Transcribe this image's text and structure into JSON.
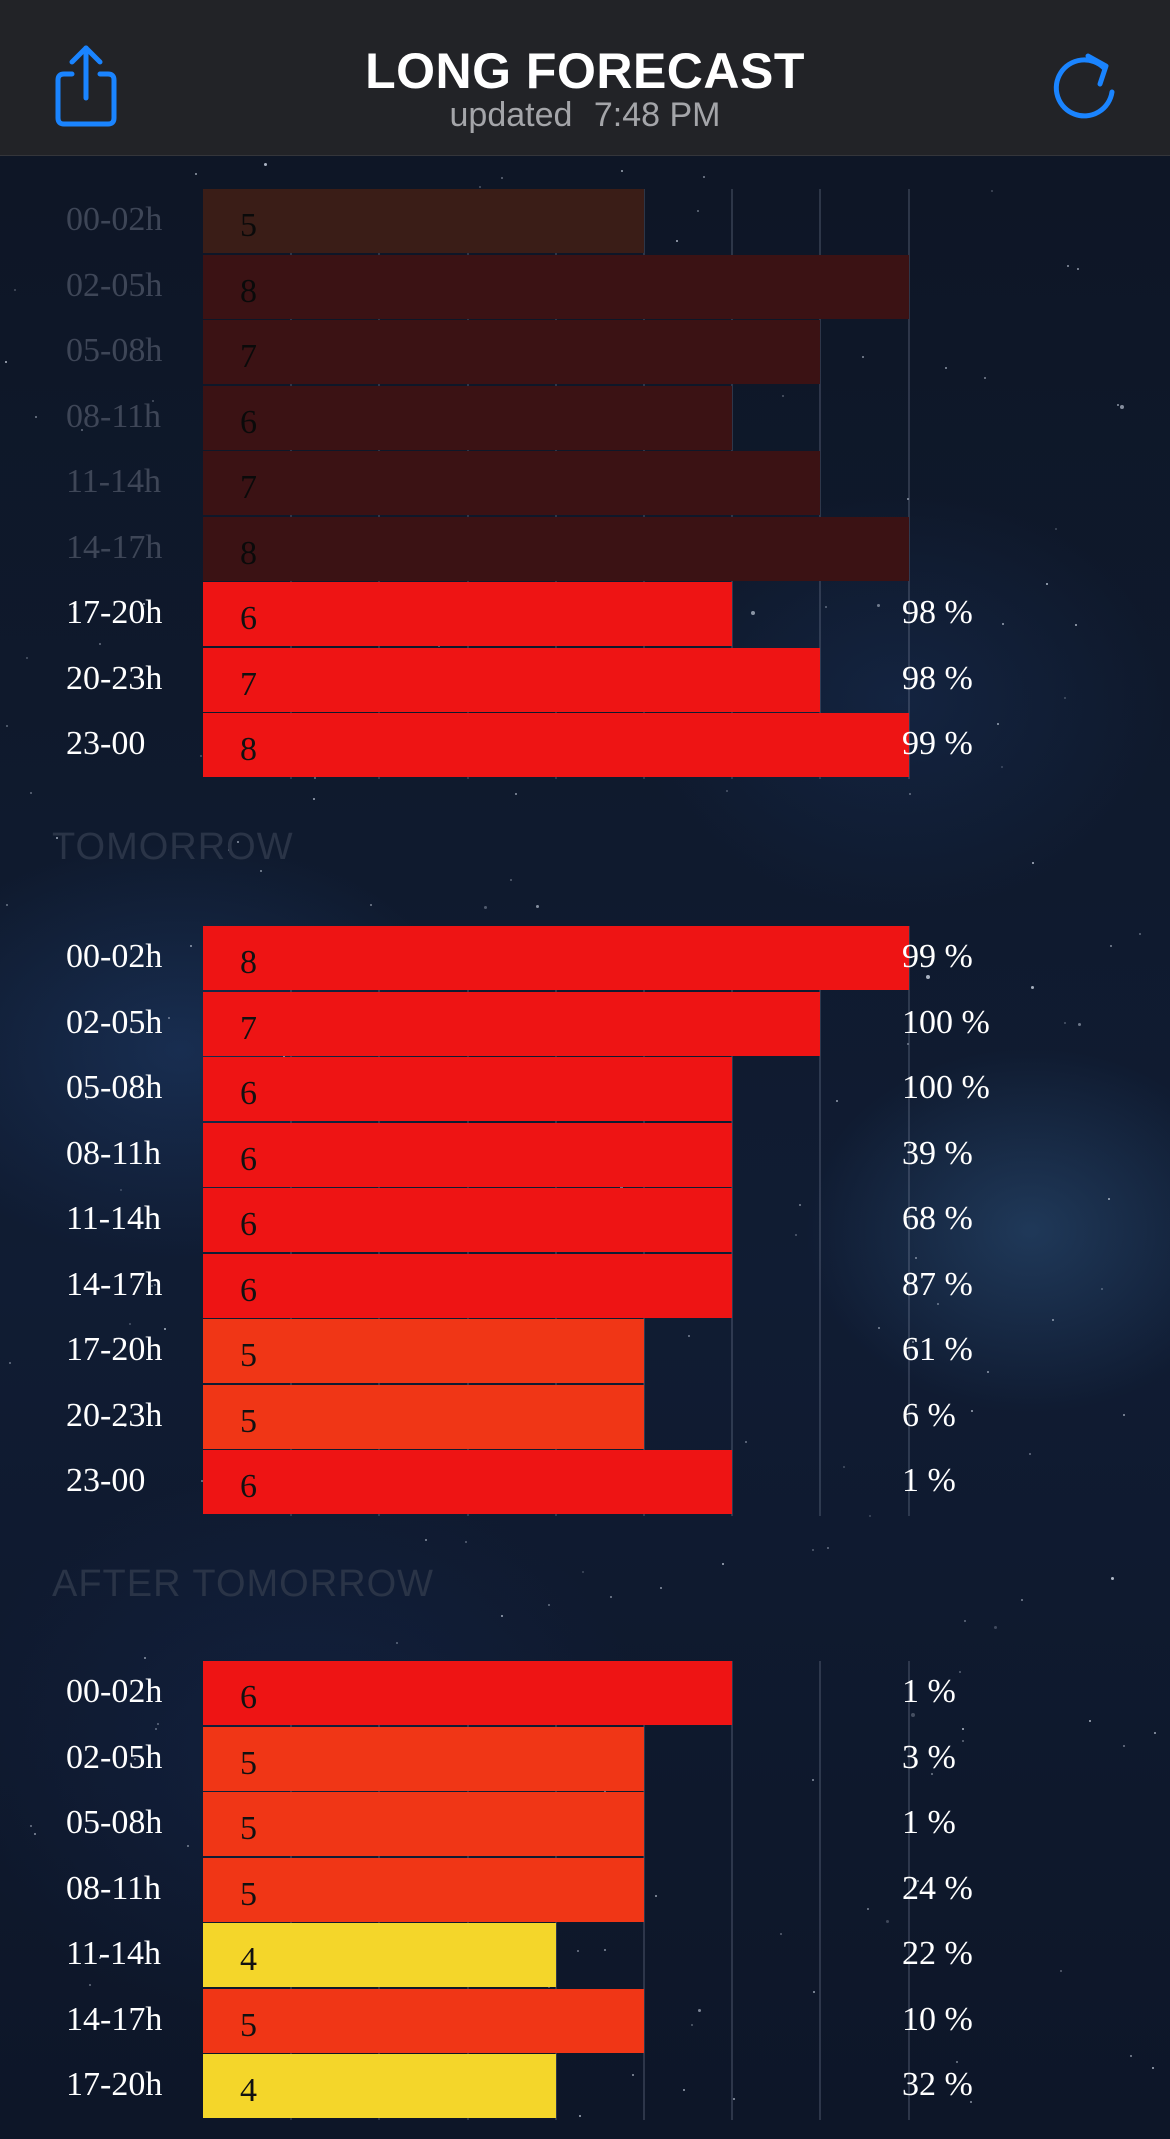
{
  "header": {
    "title": "LONG FORECAST",
    "updated_label": "updated",
    "updated_time": "7:48 PM",
    "share_icon": "share-icon",
    "refresh_icon": "refresh-icon"
  },
  "colors": {
    "past_default": "#3b1214",
    "past_kp5": "#3a1d17",
    "kp8": "#ee1414",
    "kp7": "#ee1414",
    "kp6": "#ee1414",
    "kp5": "#f03616",
    "kp4": "#f4d62a",
    "accent": "#1a84ff"
  },
  "sections": [
    {
      "label": "",
      "rows": [
        {
          "time": "00-02h",
          "kp": 5,
          "kp_label": "5",
          "prob": "",
          "past": true
        },
        {
          "time": "02-05h",
          "kp": 8,
          "kp_label": "8",
          "prob": "",
          "past": true
        },
        {
          "time": "05-08h",
          "kp": 7,
          "kp_label": "7",
          "prob": "",
          "past": true
        },
        {
          "time": "08-11h",
          "kp": 6,
          "kp_label": "6",
          "prob": "",
          "past": true
        },
        {
          "time": "11-14h",
          "kp": 7,
          "kp_label": "7",
          "prob": "",
          "past": true
        },
        {
          "time": "14-17h",
          "kp": 8,
          "kp_label": "8",
          "prob": "",
          "past": true
        },
        {
          "time": "17-20h",
          "kp": 6,
          "kp_label": "6",
          "prob": "98 %",
          "past": false
        },
        {
          "time": "20-23h",
          "kp": 7,
          "kp_label": "7",
          "prob": "98 %",
          "past": false
        },
        {
          "time": "23-00",
          "kp": 8,
          "kp_label": "8",
          "prob": "99 %",
          "past": false
        }
      ]
    },
    {
      "label": "TOMORROW",
      "rows": [
        {
          "time": "00-02h",
          "kp": 8,
          "kp_label": "8",
          "prob": "99 %",
          "past": false
        },
        {
          "time": "02-05h",
          "kp": 7,
          "kp_label": "7",
          "prob": "100 %",
          "past": false
        },
        {
          "time": "05-08h",
          "kp": 6,
          "kp_label": "6",
          "prob": "100 %",
          "past": false
        },
        {
          "time": "08-11h",
          "kp": 6,
          "kp_label": "6",
          "prob": "39 %",
          "past": false
        },
        {
          "time": "11-14h",
          "kp": 6,
          "kp_label": "6",
          "prob": "68 %",
          "past": false
        },
        {
          "time": "14-17h",
          "kp": 6,
          "kp_label": "6",
          "prob": "87 %",
          "past": false
        },
        {
          "time": "17-20h",
          "kp": 5,
          "kp_label": "5",
          "prob": "61 %",
          "past": false
        },
        {
          "time": "20-23h",
          "kp": 5,
          "kp_label": "5",
          "prob": "6 %",
          "past": false
        },
        {
          "time": "23-00",
          "kp": 6,
          "kp_label": "6",
          "prob": "1 %",
          "past": false
        }
      ]
    },
    {
      "label": "AFTER TOMORROW",
      "rows": [
        {
          "time": "00-02h",
          "kp": 6,
          "kp_label": "6",
          "prob": "1 %",
          "past": false
        },
        {
          "time": "02-05h",
          "kp": 5,
          "kp_label": "5",
          "prob": "3 %",
          "past": false
        },
        {
          "time": "05-08h",
          "kp": 5,
          "kp_label": "5",
          "prob": "1 %",
          "past": false
        },
        {
          "time": "08-11h",
          "kp": 5,
          "kp_label": "5",
          "prob": "24 %",
          "past": false
        },
        {
          "time": "11-14h",
          "kp": 4,
          "kp_label": "4",
          "prob": "22 %",
          "past": false
        },
        {
          "time": "14-17h",
          "kp": 5,
          "kp_label": "5",
          "prob": "10 %",
          "past": false
        },
        {
          "time": "17-20h",
          "kp": 4,
          "kp_label": "4",
          "prob": "32 %",
          "past": false
        }
      ]
    }
  ]
}
